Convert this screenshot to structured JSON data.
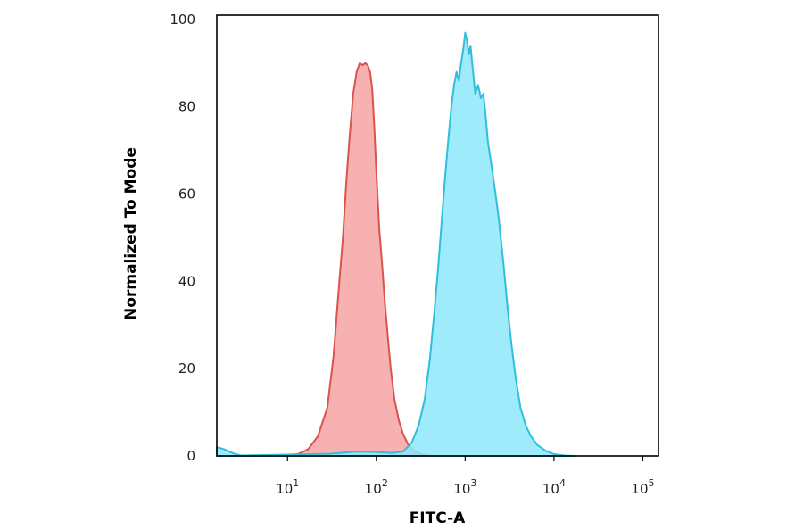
{
  "chart_data": {
    "type": "area",
    "title": "",
    "xlabel": "FITC-A",
    "ylabel": "Normalized To Mode",
    "x_scale": "log",
    "xlim": [
      1.6,
      150000
    ],
    "ylim": [
      0,
      101
    ],
    "grid": false,
    "legend": "none",
    "x_ticks": [
      {
        "base": "10",
        "exp": "1",
        "value": 10
      },
      {
        "base": "10",
        "exp": "2",
        "value": 100
      },
      {
        "base": "10",
        "exp": "3",
        "value": 1000
      },
      {
        "base": "10",
        "exp": "4",
        "value": 10000
      },
      {
        "base": "10",
        "exp": "5",
        "value": 100000
      }
    ],
    "y_ticks": [
      {
        "label": "0",
        "value": 0
      },
      {
        "label": "20",
        "value": 20
      },
      {
        "label": "40",
        "value": 40
      },
      {
        "label": "60",
        "value": 60
      },
      {
        "label": "80",
        "value": 80
      },
      {
        "label": "100",
        "value": 100
      }
    ],
    "series": [
      {
        "fill": "#f7a3a3",
        "stroke": "#d9534f",
        "x": [
          9,
          13,
          17,
          22,
          28,
          33,
          37,
          42,
          46,
          50,
          55,
          60,
          65,
          70,
          75,
          80,
          85,
          90,
          95,
          100,
          108,
          116,
          125,
          135,
          145,
          160,
          180,
          200,
          230,
          270,
          330,
          420
        ],
        "y": [
          0,
          0.4,
          1.5,
          4.5,
          11,
          23,
          36,
          50,
          63,
          73,
          83,
          88,
          90,
          89.5,
          90,
          89.5,
          88,
          84,
          75,
          65,
          52,
          44,
          35,
          27,
          20,
          13,
          8,
          5,
          2.5,
          1,
          0.3,
          0
        ]
      },
      {
        "fill": "#8de8fb",
        "stroke": "#2fbfda",
        "x": [
          1.6,
          1.9,
          2.2,
          2.6,
          3.0,
          30,
          60,
          100,
          150,
          200,
          250,
          300,
          350,
          400,
          450,
          500,
          550,
          600,
          650,
          700,
          750,
          800,
          850,
          900,
          950,
          1000,
          1050,
          1100,
          1150,
          1200,
          1300,
          1400,
          1500,
          1600,
          1700,
          1800,
          2000,
          2200,
          2400,
          2700,
          3000,
          3300,
          3700,
          4200,
          4800,
          5500,
          6500,
          8000,
          10000,
          13000,
          17000
        ],
        "y": [
          2,
          1.6,
          1,
          0.4,
          0.1,
          0.5,
          1,
          0.9,
          0.7,
          1,
          3,
          7,
          13,
          22,
          33,
          44,
          55,
          65,
          73,
          80,
          85,
          88,
          86,
          90,
          93,
          97,
          95,
          92,
          94,
          90,
          83,
          85,
          82,
          83,
          78,
          72,
          66,
          60,
          54,
          44,
          34,
          26,
          18,
          11,
          7,
          4.5,
          2.5,
          1.2,
          0.4,
          0.1,
          0
        ]
      }
    ]
  }
}
